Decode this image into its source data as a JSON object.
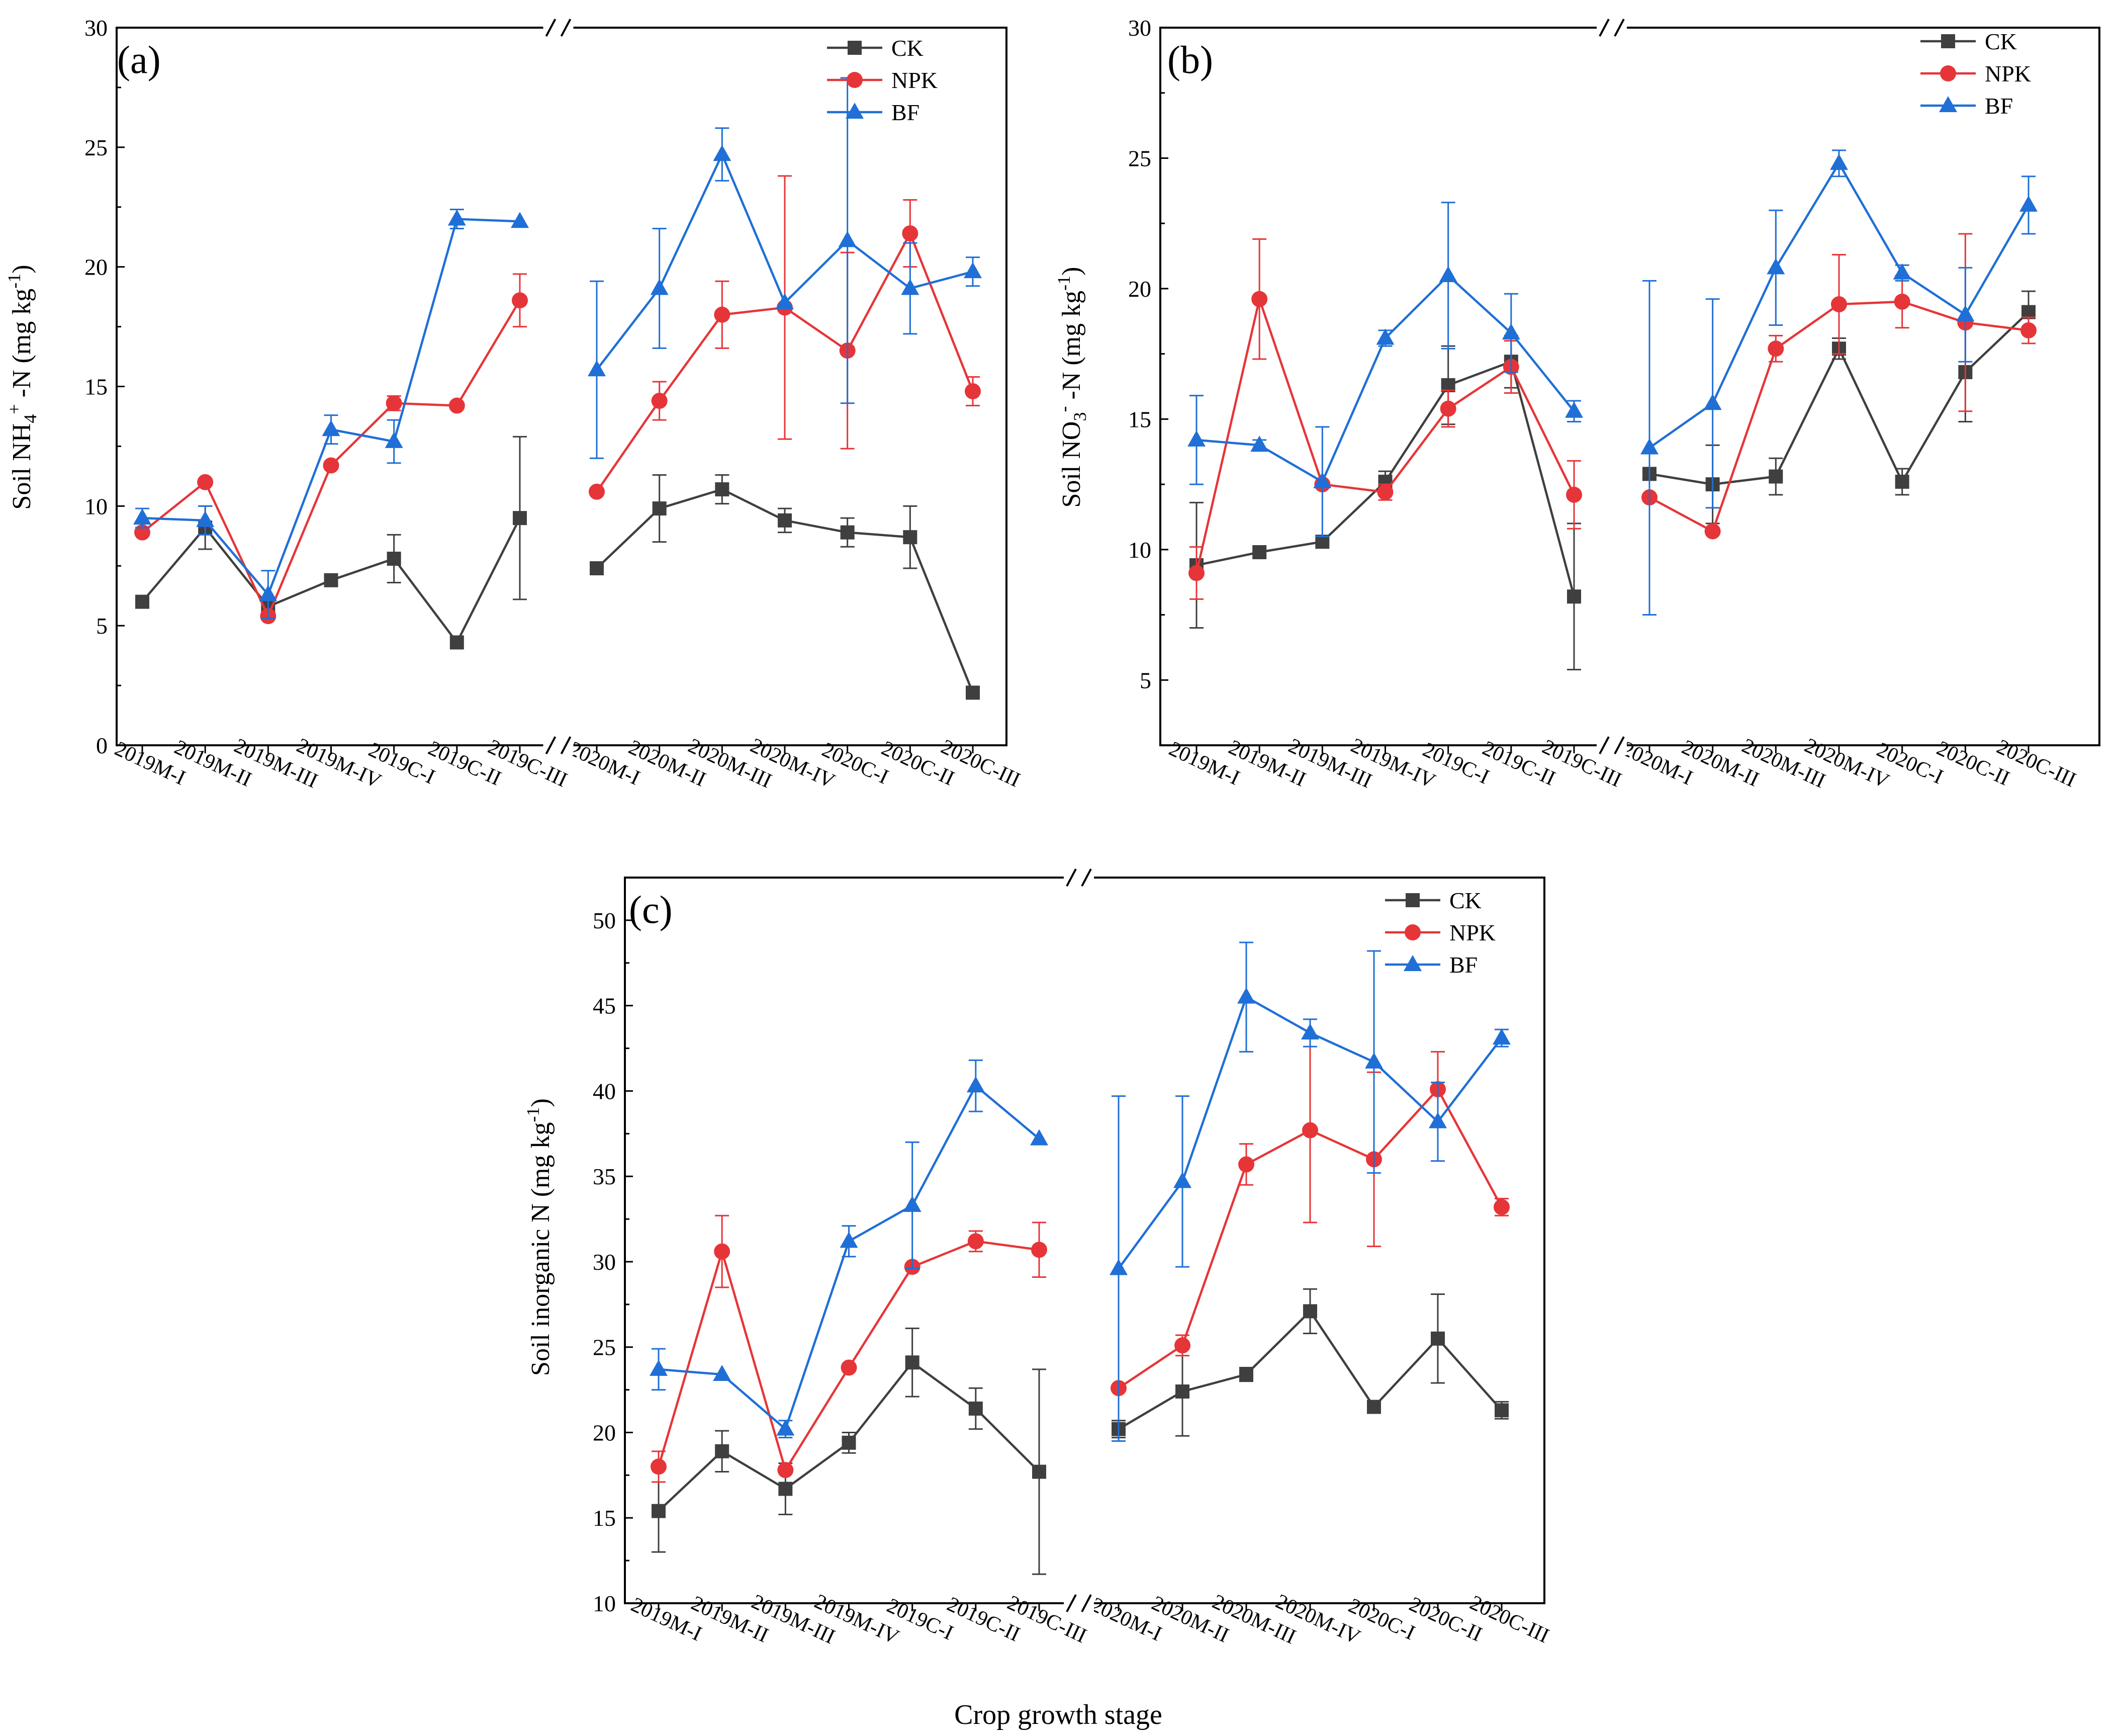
{
  "figure": {
    "x_axis_title": "Crop growth stage"
  },
  "series_styles": [
    {
      "name": "CK",
      "color": "#3f3f3f",
      "marker": "square"
    },
    {
      "name": "NPK",
      "color": "#e63538",
      "marker": "circle"
    },
    {
      "name": "BF",
      "color": "#1f6fd6",
      "marker": "triangle"
    }
  ],
  "chart_data": [
    {
      "id": "a",
      "type": "line",
      "panel_label": "(a)",
      "ylabel_parts": [
        "Soil NH",
        "4",
        "+",
        " -N (mg kg",
        "-1",
        ")"
      ],
      "ylim": [
        0,
        30
      ],
      "yticks": [
        "0",
        "5",
        "10",
        "15",
        "20",
        "25",
        "30"
      ],
      "categories": [
        "2019M-I",
        "2019M-II",
        "2019M-III",
        "2019M-IV",
        "2019C-I",
        "2019C-II",
        "2019C-III",
        "2020M-I",
        "2020M-II",
        "2020M-III",
        "2020M-IV",
        "2020C-I",
        "2020C-II",
        "2020C-III"
      ],
      "axis_break": "between 2019C-III and 2020M-I",
      "series": [
        {
          "name": "CK",
          "values": [
            6.0,
            9.1,
            5.8,
            6.9,
            7.8,
            4.3,
            9.5,
            7.4,
            9.9,
            10.7,
            9.4,
            8.9,
            8.7,
            2.2
          ],
          "errors": [
            0,
            0.9,
            0,
            0,
            1.0,
            0,
            3.4,
            0,
            1.4,
            0.6,
            0.5,
            0.6,
            1.3,
            0
          ]
        },
        {
          "name": "NPK",
          "values": [
            8.9,
            11.0,
            5.4,
            11.7,
            14.3,
            14.2,
            18.6,
            10.6,
            14.4,
            18.0,
            18.3,
            16.5,
            21.4,
            14.8
          ],
          "errors": [
            0,
            0,
            0,
            0,
            0.3,
            0,
            1.1,
            0,
            0.8,
            1.4,
            5.5,
            4.1,
            1.4,
            0.6
          ]
        },
        {
          "name": "BF",
          "values": [
            9.5,
            9.4,
            6.3,
            13.2,
            12.7,
            22.0,
            21.9,
            15.7,
            19.1,
            24.7,
            18.5,
            21.1,
            19.1,
            19.8
          ],
          "errors": [
            0.4,
            0.6,
            1.0,
            0.6,
            0.9,
            0.4,
            0,
            3.7,
            2.5,
            1.1,
            0,
            6.8,
            1.9,
            0.6
          ]
        }
      ]
    },
    {
      "id": "b",
      "type": "line",
      "panel_label": "(b)",
      "ylabel_parts": [
        "Soil NO",
        "3",
        "-",
        " -N (mg kg",
        "-1",
        ")"
      ],
      "ylim": [
        2.5,
        30
      ],
      "yticks": [
        "5",
        "10",
        "15",
        "20",
        "25",
        "30"
      ],
      "categories": [
        "2019M-I",
        "2019M-II",
        "2019M-III",
        "2019M-IV",
        "2019C-I",
        "2019C-II",
        "2019C-III",
        "2020M-I",
        "2020M-II",
        "2020M-III",
        "2020M-IV",
        "2020C-I",
        "2020C-II",
        "2020C-III"
      ],
      "axis_break": "between 2019C-III and 2020M-I",
      "series": [
        {
          "name": "CK",
          "values": [
            9.4,
            9.9,
            10.3,
            12.6,
            16.3,
            17.2,
            8.2,
            12.9,
            12.5,
            12.8,
            17.7,
            12.6,
            16.8,
            19.1
          ],
          "errors": [
            2.4,
            0,
            0,
            0.4,
            1.5,
            1.0,
            2.8,
            0,
            1.5,
            0.7,
            0.4,
            0.5,
            1.9,
            0.8
          ]
        },
        {
          "name": "NPK",
          "values": [
            9.1,
            19.6,
            12.5,
            12.2,
            15.4,
            17.0,
            12.1,
            12.0,
            10.7,
            17.7,
            19.4,
            19.5,
            18.7,
            18.4
          ],
          "errors": [
            1.0,
            2.3,
            0,
            0.3,
            0.7,
            1.0,
            1.3,
            0,
            0,
            0.5,
            1.9,
            1.0,
            3.4,
            0.5
          ]
        },
        {
          "name": "BF",
          "values": [
            14.2,
            14.0,
            12.6,
            18.1,
            20.5,
            18.3,
            15.3,
            13.9,
            15.6,
            20.8,
            24.8,
            20.6,
            19.0,
            23.2
          ],
          "errors": [
            1.7,
            0.2,
            2.1,
            0.3,
            2.8,
            1.5,
            0.4,
            6.4,
            4.0,
            2.2,
            0.5,
            0.3,
            1.8,
            1.1
          ]
        }
      ]
    },
    {
      "id": "c",
      "type": "line",
      "panel_label": "(c)",
      "ylabel_parts": [
        "Soil inorganic N (mg kg",
        "-1",
        ")"
      ],
      "ylim": [
        10,
        52.5
      ],
      "yticks": [
        "10",
        "15",
        "20",
        "25",
        "30",
        "35",
        "40",
        "45",
        "50"
      ],
      "categories": [
        "2019M-I",
        "2019M-II",
        "2019M-III",
        "2019M-IV",
        "2019C-I",
        "2019C-II",
        "2019C-III",
        "2020M-I",
        "2020M-II",
        "2020M-III",
        "2020M-IV",
        "2020C-I",
        "2020C-II",
        "2020C-III"
      ],
      "axis_break": "between 2019C-III and 2020M-I",
      "series": [
        {
          "name": "CK",
          "values": [
            15.4,
            18.9,
            16.7,
            19.4,
            24.1,
            21.4,
            17.7,
            20.2,
            22.4,
            23.4,
            27.1,
            21.5,
            25.5,
            21.3
          ],
          "errors": [
            2.4,
            1.2,
            1.5,
            0.6,
            2.0,
            1.2,
            6.0,
            0.5,
            2.6,
            0.4,
            1.3,
            0,
            2.6,
            0.5
          ]
        },
        {
          "name": "NPK",
          "values": [
            18.0,
            30.6,
            17.8,
            23.8,
            29.7,
            31.2,
            30.7,
            22.6,
            25.1,
            35.7,
            37.7,
            36.0,
            40.1,
            33.2
          ],
          "errors": [
            0.9,
            2.1,
            0,
            0,
            0,
            0.6,
            1.6,
            0,
            0.6,
            1.2,
            5.4,
            5.1,
            2.2,
            0.5
          ]
        },
        {
          "name": "BF",
          "values": [
            23.7,
            23.4,
            20.2,
            31.2,
            33.3,
            40.3,
            37.2,
            29.6,
            34.7,
            45.5,
            43.4,
            41.7,
            38.2,
            43.1
          ],
          "errors": [
            1.2,
            0,
            0.5,
            0.9,
            3.7,
            1.5,
            0,
            10.1,
            5.0,
            3.2,
            0.8,
            6.5,
            2.3,
            0.5
          ]
        }
      ]
    }
  ]
}
